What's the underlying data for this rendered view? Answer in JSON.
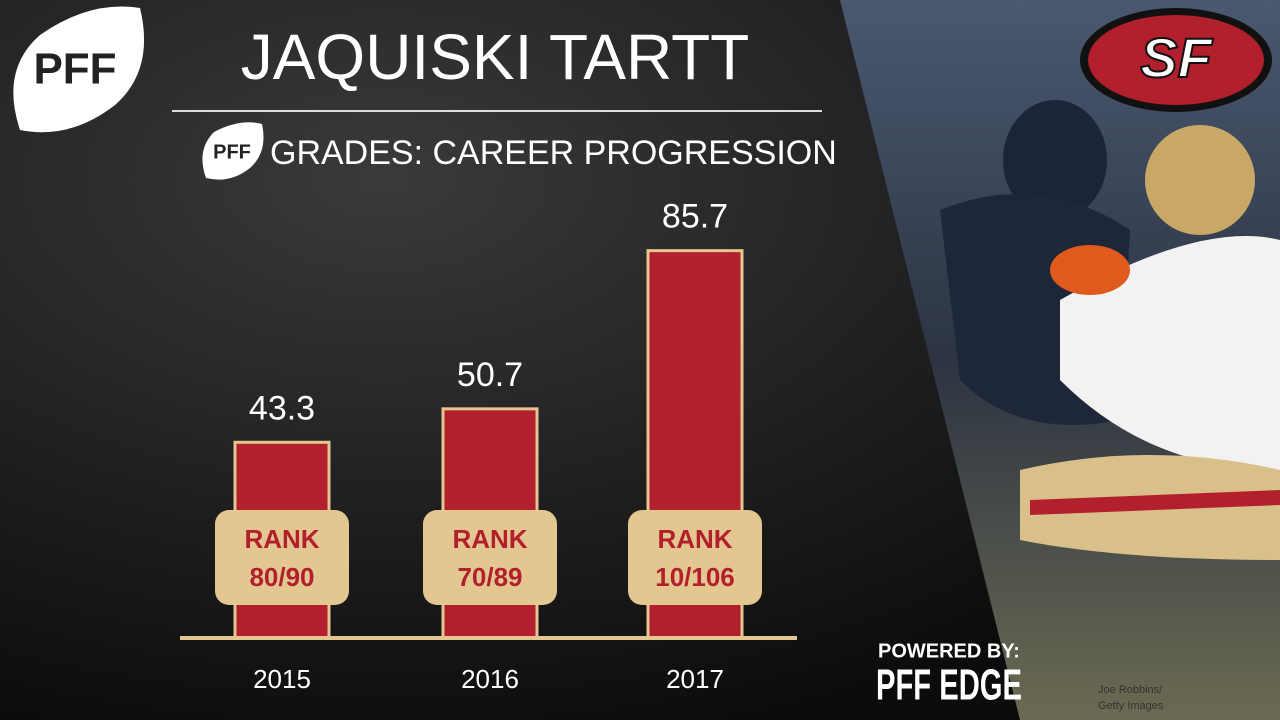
{
  "logo_text": "PFF",
  "team_logo": "SF",
  "powered_by": "POWERED BY:",
  "edge_text": "PFF EDGE",
  "photo_credit": [
    "Joe Robbins/",
    "Getty Images"
  ],
  "chart_data": {
    "type": "bar",
    "title": "JAQUISKI TARTT",
    "subtitle": "GRADES: CAREER PROGRESSION",
    "categories": [
      "2015",
      "2016",
      "2017"
    ],
    "values": [
      43.3,
      50.7,
      85.7
    ],
    "rank_title": "RANK",
    "rank_labels": [
      "80/90",
      "70/89",
      "10/106"
    ],
    "color": "#b21f2d",
    "ylim": [
      0,
      100
    ]
  }
}
